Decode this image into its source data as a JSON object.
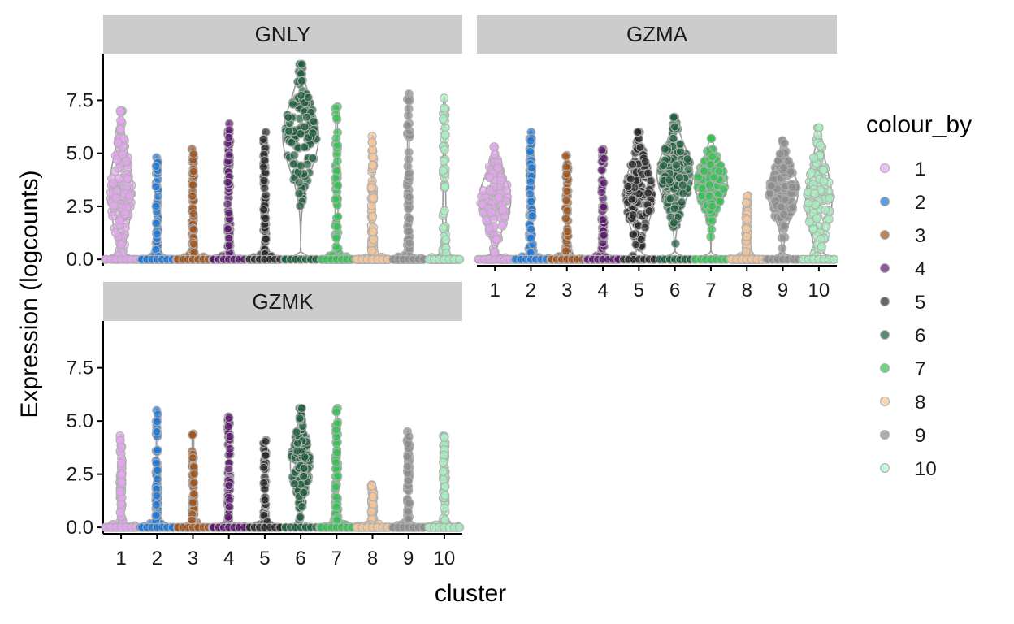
{
  "chart_data": {
    "type": "violin",
    "xlabel": "cluster",
    "ylabel": "Expression (logcounts)",
    "categories": [
      "1",
      "2",
      "3",
      "4",
      "5",
      "6",
      "7",
      "8",
      "9",
      "10"
    ],
    "yticks": [
      "0.0",
      "2.5",
      "5.0",
      "7.5"
    ],
    "ylim": [
      -0.3,
      9.7
    ],
    "legend": {
      "title": "colour_by",
      "placement": "right",
      "entries": [
        "1",
        "2",
        "3",
        "4",
        "5",
        "6",
        "7",
        "8",
        "9",
        "10"
      ]
    },
    "colors": {
      "1": "#e3a5ee",
      "2": "#1f77d4",
      "3": "#a0541f",
      "4": "#5c1b6e",
      "5": "#2b2b2b",
      "6": "#1e5e3c",
      "7": "#35c053",
      "8": "#f5c79b",
      "9": "#8c8c8c",
      "10": "#a8f0c0"
    },
    "panels": [
      {
        "title": "GNLY",
        "max": [
          7.0,
          4.8,
          5.2,
          6.4,
          6.0,
          9.2,
          7.2,
          5.8,
          7.8,
          7.6
        ],
        "median": [
          3.2,
          0.0,
          0.0,
          0.0,
          0.0,
          5.8,
          0.0,
          0.0,
          0.0,
          0.0
        ],
        "spread": [
          0.7,
          0.1,
          0.15,
          0.1,
          0.15,
          0.95,
          0.35,
          0.1,
          0.25,
          0.45
        ]
      },
      {
        "title": "GZMA",
        "max": [
          5.3,
          6.0,
          4.9,
          5.2,
          6.0,
          6.7,
          5.7,
          3.0,
          5.6,
          6.2
        ],
        "median": [
          2.8,
          0.0,
          0.0,
          0.0,
          3.0,
          4.0,
          3.6,
          0.0,
          3.2,
          2.8
        ],
        "spread": [
          0.85,
          0.4,
          0.2,
          0.2,
          0.85,
          0.95,
          0.85,
          0.1,
          0.8,
          0.8
        ]
      },
      {
        "title": "GZMK",
        "max": [
          4.3,
          5.5,
          4.4,
          5.2,
          4.1,
          5.6,
          5.6,
          2.0,
          4.5,
          4.3
        ],
        "median": [
          0.0,
          0.0,
          0.0,
          0.0,
          0.0,
          3.0,
          0.0,
          0.0,
          0.0,
          0.0
        ],
        "spread": [
          0.1,
          0.1,
          0.15,
          0.15,
          0.15,
          0.55,
          0.35,
          0.05,
          0.15,
          0.2
        ]
      }
    ]
  }
}
